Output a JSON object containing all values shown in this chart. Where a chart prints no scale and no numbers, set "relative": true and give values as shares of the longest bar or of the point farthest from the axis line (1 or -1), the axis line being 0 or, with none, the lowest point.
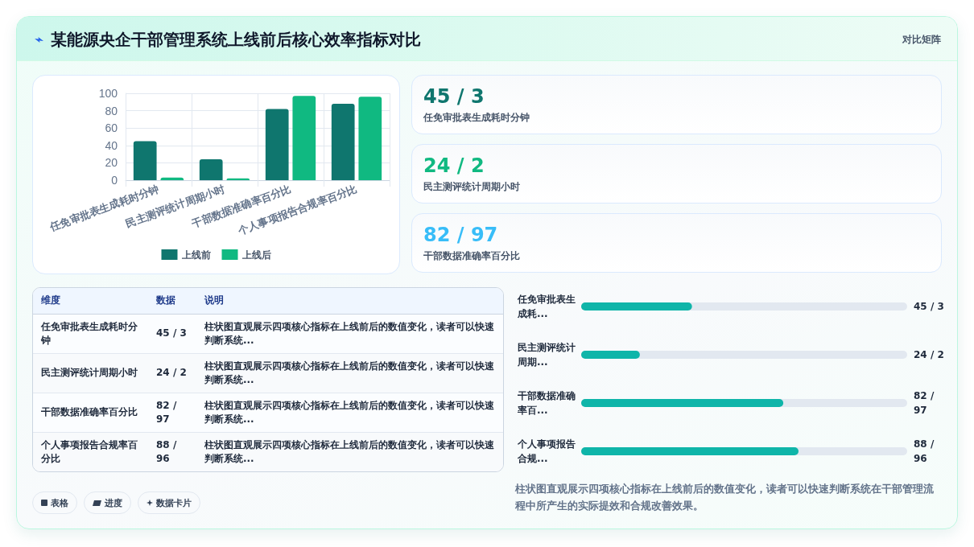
{
  "chart_data": [
    {
      "type": "bar",
      "title": "某能源央企干部管理系统上线前后核心效率指标对比",
      "categories": [
        "任免审批表生成耗时分钟",
        "民主测评统计周期小时",
        "干部数据准确率百分比",
        "个人事项报告合规率百分比"
      ],
      "series": [
        {
          "name": "上线前",
          "color": "#0f766e",
          "values": [
            45,
            24,
            82,
            88
          ]
        },
        {
          "name": "上线后",
          "color": "#10b981",
          "values": [
            3,
            2,
            97,
            96
          ]
        }
      ],
      "ylim": [
        0,
        100
      ],
      "yticks": [
        0,
        20,
        40,
        60,
        80,
        100
      ],
      "grid": true,
      "legend": "bottom"
    },
    {
      "type": "other",
      "title": "对比矩阵",
      "categories": [
        "任免审批表生成耗时分钟",
        "民主测评统计周期小时",
        "干部数据准确率百分比"
      ],
      "value_labels": [
        "45 / 3",
        "24 / 2",
        "82 / 97"
      ]
    },
    {
      "type": "other",
      "categories": [
        "任免审批表生成耗时分钟",
        "民主测评统计周期小时",
        "干部数据准确率百分比",
        "个人事项报告合规率百分比"
      ],
      "value_labels": [
        "45 / 3",
        "24 / 2",
        "82 / 97",
        "88 / 96"
      ],
      "annotations": [
        "维度",
        "数据",
        "说明",
        "柱状图直观展示四项核心指标在上线前后的数值变化，读者可以快速判断系统...",
        "柱状图直观展示四项核心指标在上线前后的数值变化，读者可以快速判断系统...",
        "柱状图直观展示四项核心指标在上线前后的数值变化，读者可以快速判断系统...",
        "柱状图直观展示四项核心指标在上线前后的数值变化，读者可以快速判断系统...",
        "表格",
        "进度",
        "数据卡片"
      ]
    },
    {
      "type": "bar",
      "orientation": "horizontal",
      "relative": true,
      "categories": [
        "任免审批表生成耗...",
        "民主测评统计周期...",
        "干部数据准确率百...",
        "个人事项报告合规..."
      ],
      "values": [
        0.51,
        0.27,
        0.93,
        1
      ],
      "color": "#0fb5a9",
      "annotations": [
        "45 / 3",
        "24 / 2",
        "82 / 97",
        "88 / 96",
        "柱状图直观展示四项核心指标在上线前后的数值变化，读者可以快速判断系统在干部管理流程中所产生的实际提效和合规改善效果。"
      ]
    }
  ]
}
